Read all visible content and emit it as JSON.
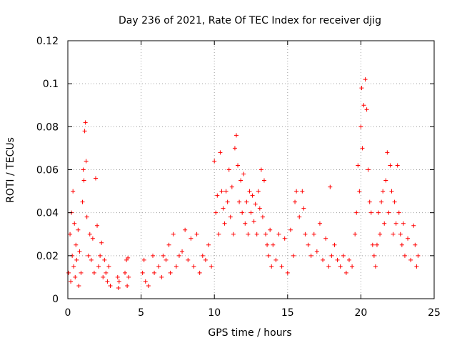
{
  "chart_data": {
    "type": "scatter",
    "title": "Day 236 of 2021, Rate Of TEC Index for receiver djig",
    "xlabel": "GPS time / hours",
    "ylabel": "ROTI / TECUs",
    "xlim": [
      0,
      25
    ],
    "ylim": [
      0,
      0.12
    ],
    "xticks": [
      0,
      5,
      10,
      15,
      20,
      25
    ],
    "xtick_labels": [
      "0",
      "5",
      "10",
      "15",
      "20",
      "25"
    ],
    "yticks": [
      0,
      0.02,
      0.04,
      0.06,
      0.08,
      0.1,
      0.12
    ],
    "ytick_labels": [
      "0",
      "0.02",
      "0.04",
      "0.06",
      "0.08",
      "0.1",
      "0.12"
    ],
    "grid": true,
    "marker": "+",
    "color": "#ff0000",
    "series": [
      {
        "name": "ROTI",
        "points": [
          [
            0.05,
            0.012
          ],
          [
            0.15,
            0.03
          ],
          [
            0.2,
            0.008
          ],
          [
            0.25,
            0.04
          ],
          [
            0.3,
            0.02
          ],
          [
            0.35,
            0.05
          ],
          [
            0.4,
            0.015
          ],
          [
            0.45,
            0.035
          ],
          [
            0.5,
            0.01
          ],
          [
            0.55,
            0.025
          ],
          [
            0.6,
            0.018
          ],
          [
            0.7,
            0.032
          ],
          [
            0.75,
            0.006
          ],
          [
            0.8,
            0.022
          ],
          [
            0.9,
            0.012
          ],
          [
            1.0,
            0.045
          ],
          [
            1.05,
            0.06
          ],
          [
            1.1,
            0.055
          ],
          [
            1.15,
            0.078
          ],
          [
            1.2,
            0.082
          ],
          [
            1.25,
            0.064
          ],
          [
            1.3,
            0.038
          ],
          [
            1.4,
            0.02
          ],
          [
            1.5,
            0.03
          ],
          [
            1.6,
            0.018
          ],
          [
            1.7,
            0.028
          ],
          [
            1.8,
            0.012
          ],
          [
            1.9,
            0.056
          ],
          [
            2.0,
            0.034
          ],
          [
            2.1,
            0.015
          ],
          [
            2.2,
            0.02
          ],
          [
            2.3,
            0.026
          ],
          [
            2.4,
            0.01
          ],
          [
            2.5,
            0.018
          ],
          [
            2.6,
            0.012
          ],
          [
            2.7,
            0.008
          ],
          [
            2.8,
            0.015
          ],
          [
            2.9,
            0.006
          ],
          [
            3.4,
            0.01
          ],
          [
            3.45,
            0.005
          ],
          [
            3.5,
            0.008
          ],
          [
            3.9,
            0.012
          ],
          [
            4.0,
            0.018
          ],
          [
            4.05,
            0.006
          ],
          [
            4.1,
            0.019
          ],
          [
            4.15,
            0.01
          ],
          [
            5.1,
            0.012
          ],
          [
            5.2,
            0.018
          ],
          [
            5.3,
            0.008
          ],
          [
            5.5,
            0.006
          ],
          [
            5.8,
            0.02
          ],
          [
            5.9,
            0.012
          ],
          [
            6.2,
            0.015
          ],
          [
            6.4,
            0.01
          ],
          [
            6.5,
            0.02
          ],
          [
            6.7,
            0.018
          ],
          [
            6.9,
            0.025
          ],
          [
            7.0,
            0.012
          ],
          [
            7.2,
            0.03
          ],
          [
            7.4,
            0.015
          ],
          [
            7.6,
            0.02
          ],
          [
            7.8,
            0.022
          ],
          [
            8.0,
            0.032
          ],
          [
            8.2,
            0.018
          ],
          [
            8.4,
            0.028
          ],
          [
            8.6,
            0.015
          ],
          [
            8.8,
            0.03
          ],
          [
            9.0,
            0.012
          ],
          [
            9.2,
            0.02
          ],
          [
            9.4,
            0.018
          ],
          [
            9.6,
            0.025
          ],
          [
            9.8,
            0.015
          ],
          [
            10.0,
            0.064
          ],
          [
            10.1,
            0.04
          ],
          [
            10.2,
            0.048
          ],
          [
            10.3,
            0.03
          ],
          [
            10.4,
            0.068
          ],
          [
            10.5,
            0.05
          ],
          [
            10.6,
            0.042
          ],
          [
            10.7,
            0.035
          ],
          [
            10.8,
            0.05
          ],
          [
            10.9,
            0.045
          ],
          [
            11.0,
            0.06
          ],
          [
            11.1,
            0.038
          ],
          [
            11.2,
            0.052
          ],
          [
            11.3,
            0.03
          ],
          [
            11.4,
            0.07
          ],
          [
            11.5,
            0.076
          ],
          [
            11.6,
            0.062
          ],
          [
            11.7,
            0.045
          ],
          [
            11.8,
            0.055
          ],
          [
            11.9,
            0.04
          ],
          [
            12.0,
            0.058
          ],
          [
            12.1,
            0.035
          ],
          [
            12.2,
            0.045
          ],
          [
            12.3,
            0.03
          ],
          [
            12.4,
            0.05
          ],
          [
            12.5,
            0.04
          ],
          [
            12.6,
            0.048
          ],
          [
            12.7,
            0.036
          ],
          [
            12.8,
            0.044
          ],
          [
            12.9,
            0.03
          ],
          [
            13.0,
            0.05
          ],
          [
            13.1,
            0.042
          ],
          [
            13.2,
            0.06
          ],
          [
            13.3,
            0.038
          ],
          [
            13.4,
            0.055
          ],
          [
            13.5,
            0.03
          ],
          [
            13.6,
            0.025
          ],
          [
            13.7,
            0.02
          ],
          [
            13.8,
            0.032
          ],
          [
            13.9,
            0.015
          ],
          [
            14.0,
            0.025
          ],
          [
            14.2,
            0.018
          ],
          [
            14.4,
            0.03
          ],
          [
            14.6,
            0.015
          ],
          [
            14.8,
            0.028
          ],
          [
            15.0,
            0.012
          ],
          [
            15.2,
            0.032
          ],
          [
            15.4,
            0.02
          ],
          [
            15.5,
            0.045
          ],
          [
            15.6,
            0.05
          ],
          [
            15.8,
            0.038
          ],
          [
            16.0,
            0.05
          ],
          [
            16.1,
            0.042
          ],
          [
            16.2,
            0.03
          ],
          [
            16.4,
            0.025
          ],
          [
            16.6,
            0.02
          ],
          [
            16.8,
            0.03
          ],
          [
            17.0,
            0.022
          ],
          [
            17.2,
            0.035
          ],
          [
            17.4,
            0.018
          ],
          [
            17.6,
            0.028
          ],
          [
            17.8,
            0.015
          ],
          [
            17.9,
            0.052
          ],
          [
            18.0,
            0.02
          ],
          [
            18.2,
            0.025
          ],
          [
            18.4,
            0.018
          ],
          [
            18.6,
            0.015
          ],
          [
            18.8,
            0.02
          ],
          [
            19.0,
            0.012
          ],
          [
            19.2,
            0.018
          ],
          [
            19.4,
            0.015
          ],
          [
            19.6,
            0.03
          ],
          [
            19.7,
            0.04
          ],
          [
            19.8,
            0.062
          ],
          [
            19.9,
            0.05
          ],
          [
            20.0,
            0.08
          ],
          [
            20.05,
            0.098
          ],
          [
            20.1,
            0.07
          ],
          [
            20.2,
            0.09
          ],
          [
            20.3,
            0.102
          ],
          [
            20.4,
            0.088
          ],
          [
            20.5,
            0.06
          ],
          [
            20.6,
            0.045
          ],
          [
            20.7,
            0.04
          ],
          [
            20.8,
            0.025
          ],
          [
            20.9,
            0.02
          ],
          [
            21.0,
            0.015
          ],
          [
            21.1,
            0.025
          ],
          [
            21.2,
            0.04
          ],
          [
            21.3,
            0.03
          ],
          [
            21.4,
            0.045
          ],
          [
            21.5,
            0.05
          ],
          [
            21.6,
            0.035
          ],
          [
            21.7,
            0.055
          ],
          [
            21.8,
            0.068
          ],
          [
            21.9,
            0.04
          ],
          [
            22.0,
            0.062
          ],
          [
            22.1,
            0.05
          ],
          [
            22.2,
            0.03
          ],
          [
            22.3,
            0.045
          ],
          [
            22.4,
            0.035
          ],
          [
            22.5,
            0.062
          ],
          [
            22.6,
            0.04
          ],
          [
            22.7,
            0.03
          ],
          [
            22.8,
            0.025
          ],
          [
            22.9,
            0.035
          ],
          [
            23.0,
            0.02
          ],
          [
            23.2,
            0.028
          ],
          [
            23.4,
            0.018
          ],
          [
            23.6,
            0.034
          ],
          [
            23.7,
            0.025
          ],
          [
            23.8,
            0.015
          ],
          [
            23.9,
            0.02
          ]
        ]
      }
    ]
  }
}
